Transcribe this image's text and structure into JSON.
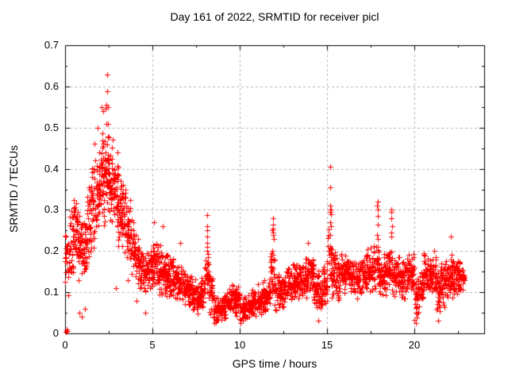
{
  "chart": {
    "title": "Day 161 of 2022, SRMTID for receiver picl",
    "xlabel": "GPS time / hours",
    "ylabel": "SRMTID / TECUs"
  },
  "chart_data": {
    "type": "scatter",
    "title": "Day 161 of 2022, SRMTID for receiver picl",
    "xlabel": "GPS time / hours",
    "ylabel": "SRMTID / TECUs",
    "series_name": "SRMTID",
    "marker": "plus",
    "marker_color": "#ff0000",
    "legend": "none",
    "xlim": [
      0,
      24
    ],
    "ylim": [
      0,
      0.7
    ],
    "xticks": {
      "values": [
        0,
        5,
        10,
        15,
        20
      ],
      "labels": [
        "0",
        "5",
        "10",
        "15",
        "20"
      ],
      "minor_step": 2.5
    },
    "yticks": {
      "values": [
        0,
        0.1,
        0.2,
        0.3,
        0.4,
        0.5,
        0.6,
        0.7
      ],
      "labels": [
        "0",
        "0.1",
        "0.2",
        "0.3",
        "0.4",
        "0.5",
        "0.6",
        "0.7"
      ],
      "minor_step": 0.05
    },
    "grid": {
      "major": true,
      "minor": false,
      "style": "dashed",
      "color": "#b3b3b3"
    },
    "frame_color": "#000000",
    "background": "#ffffff",
    "data_summary": {
      "description": "Dense scatter of ~2700 red '+' points, 30 s cadence, hours 0 to ~22.85. High noisy peak near hour 2.4 (max 0.63 TECU), decay to ~0.1-0.15 baseline, low dips ~0.02 near hours 8.6, 10, 20.1, and narrow spikes near hours 8.1, 11.9, 15.2 (0.40), 17.9, 18.7. Cluster of points at the origin.",
      "bin_width_hours": 0.25,
      "bins_format": [
        "x_start_hour",
        "y_low",
        "y_high",
        "n_points"
      ],
      "bins": [
        [
          0.0,
          0.09,
          0.25,
          25
        ],
        [
          0.25,
          0.13,
          0.33,
          30
        ],
        [
          0.5,
          0.15,
          0.37,
          32
        ],
        [
          0.75,
          0.1,
          0.3,
          30
        ],
        [
          1.0,
          0.12,
          0.3,
          30
        ],
        [
          1.25,
          0.15,
          0.37,
          32
        ],
        [
          1.5,
          0.2,
          0.44,
          38
        ],
        [
          1.75,
          0.22,
          0.46,
          38
        ],
        [
          2.0,
          0.25,
          0.52,
          40
        ],
        [
          2.25,
          0.26,
          0.56,
          40
        ],
        [
          2.5,
          0.25,
          0.5,
          38
        ],
        [
          2.75,
          0.22,
          0.45,
          36
        ],
        [
          3.0,
          0.2,
          0.42,
          36
        ],
        [
          3.25,
          0.18,
          0.38,
          34
        ],
        [
          3.5,
          0.15,
          0.34,
          32
        ],
        [
          3.75,
          0.14,
          0.28,
          32
        ],
        [
          4.0,
          0.12,
          0.25,
          30
        ],
        [
          4.25,
          0.1,
          0.22,
          30
        ],
        [
          4.5,
          0.09,
          0.2,
          30
        ],
        [
          4.75,
          0.1,
          0.22,
          30
        ],
        [
          5.0,
          0.1,
          0.24,
          32
        ],
        [
          5.25,
          0.09,
          0.22,
          32
        ],
        [
          5.5,
          0.08,
          0.21,
          32
        ],
        [
          5.75,
          0.08,
          0.2,
          32
        ],
        [
          6.0,
          0.08,
          0.19,
          30
        ],
        [
          6.25,
          0.08,
          0.18,
          30
        ],
        [
          6.5,
          0.07,
          0.17,
          30
        ],
        [
          6.75,
          0.07,
          0.16,
          30
        ],
        [
          7.0,
          0.05,
          0.15,
          30
        ],
        [
          7.25,
          0.05,
          0.14,
          30
        ],
        [
          7.5,
          0.04,
          0.13,
          30
        ],
        [
          7.75,
          0.05,
          0.14,
          30
        ],
        [
          8.0,
          0.08,
          0.2,
          26
        ],
        [
          8.25,
          0.04,
          0.15,
          30
        ],
        [
          8.5,
          0.02,
          0.09,
          30
        ],
        [
          8.75,
          0.02,
          0.09,
          30
        ],
        [
          9.0,
          0.03,
          0.11,
          30
        ],
        [
          9.25,
          0.04,
          0.12,
          30
        ],
        [
          9.5,
          0.04,
          0.13,
          30
        ],
        [
          9.75,
          0.03,
          0.12,
          30
        ],
        [
          10.0,
          0.02,
          0.1,
          30
        ],
        [
          10.25,
          0.03,
          0.1,
          30
        ],
        [
          10.5,
          0.03,
          0.11,
          30
        ],
        [
          10.75,
          0.04,
          0.11,
          30
        ],
        [
          11.0,
          0.04,
          0.12,
          30
        ],
        [
          11.25,
          0.05,
          0.13,
          30
        ],
        [
          11.5,
          0.05,
          0.14,
          30
        ],
        [
          11.75,
          0.08,
          0.22,
          26
        ],
        [
          12.0,
          0.05,
          0.16,
          30
        ],
        [
          12.25,
          0.06,
          0.15,
          30
        ],
        [
          12.5,
          0.07,
          0.16,
          30
        ],
        [
          12.75,
          0.07,
          0.17,
          30
        ],
        [
          13.0,
          0.08,
          0.17,
          30
        ],
        [
          13.25,
          0.08,
          0.18,
          30
        ],
        [
          13.5,
          0.08,
          0.18,
          30
        ],
        [
          13.75,
          0.08,
          0.2,
          30
        ],
        [
          14.0,
          0.08,
          0.2,
          30
        ],
        [
          14.25,
          0.05,
          0.17,
          30
        ],
        [
          14.5,
          0.04,
          0.16,
          30
        ],
        [
          14.75,
          0.06,
          0.19,
          30
        ],
        [
          15.0,
          0.1,
          0.26,
          26
        ],
        [
          15.25,
          0.08,
          0.22,
          30
        ],
        [
          15.5,
          0.08,
          0.19,
          30
        ],
        [
          15.75,
          0.09,
          0.2,
          30
        ],
        [
          16.0,
          0.1,
          0.2,
          30
        ],
        [
          16.25,
          0.09,
          0.19,
          30
        ],
        [
          16.5,
          0.08,
          0.18,
          30
        ],
        [
          16.75,
          0.08,
          0.19,
          30
        ],
        [
          17.0,
          0.09,
          0.2,
          30
        ],
        [
          17.25,
          0.09,
          0.21,
          30
        ],
        [
          17.5,
          0.1,
          0.22,
          30
        ],
        [
          17.75,
          0.1,
          0.24,
          26
        ],
        [
          18.0,
          0.08,
          0.2,
          30
        ],
        [
          18.25,
          0.09,
          0.2,
          30
        ],
        [
          18.5,
          0.1,
          0.22,
          27
        ],
        [
          18.75,
          0.08,
          0.19,
          30
        ],
        [
          19.0,
          0.08,
          0.19,
          30
        ],
        [
          19.25,
          0.08,
          0.19,
          30
        ],
        [
          19.5,
          0.1,
          0.21,
          30
        ],
        [
          19.75,
          0.08,
          0.2,
          30
        ],
        [
          20.0,
          0.03,
          0.14,
          30
        ],
        [
          20.25,
          0.06,
          0.16,
          30
        ],
        [
          20.5,
          0.08,
          0.2,
          30
        ],
        [
          20.75,
          0.09,
          0.21,
          30
        ],
        [
          21.0,
          0.08,
          0.21,
          30
        ],
        [
          21.25,
          0.04,
          0.16,
          30
        ],
        [
          21.5,
          0.06,
          0.18,
          30
        ],
        [
          21.75,
          0.07,
          0.19,
          30
        ],
        [
          22.0,
          0.08,
          0.2,
          30
        ],
        [
          22.25,
          0.09,
          0.2,
          30
        ],
        [
          22.5,
          0.1,
          0.18,
          30
        ],
        [
          22.75,
          0.1,
          0.17,
          12
        ]
      ],
      "notable_points": [
        [
          0.05,
          0.004
        ],
        [
          0.1,
          0.005
        ],
        [
          0.15,
          0.006
        ],
        [
          0.08,
          0.01
        ],
        [
          0.8,
          0.05
        ],
        [
          0.95,
          0.04
        ],
        [
          1.15,
          0.06
        ],
        [
          1.7,
          0.46
        ],
        [
          1.85,
          0.5
        ],
        [
          2.1,
          0.55
        ],
        [
          2.2,
          0.54
        ],
        [
          2.4,
          0.628
        ],
        [
          2.4,
          0.588
        ],
        [
          2.35,
          0.555
        ],
        [
          2.45,
          0.55
        ],
        [
          2.3,
          0.545
        ],
        [
          2.9,
          0.11
        ],
        [
          3.6,
          0.13
        ],
        [
          4.1,
          0.08
        ],
        [
          4.6,
          0.05
        ],
        [
          5.1,
          0.27
        ],
        [
          5.6,
          0.26
        ],
        [
          6.6,
          0.22
        ],
        [
          8.13,
          0.287
        ],
        [
          8.13,
          0.26
        ],
        [
          8.12,
          0.25
        ],
        [
          8.14,
          0.235
        ],
        [
          8.13,
          0.22
        ],
        [
          8.15,
          0.21
        ],
        [
          8.12,
          0.2
        ],
        [
          8.16,
          0.185
        ],
        [
          11.9,
          0.28
        ],
        [
          11.92,
          0.265
        ],
        [
          11.9,
          0.255
        ],
        [
          11.88,
          0.25
        ],
        [
          11.93,
          0.245
        ],
        [
          11.9,
          0.24
        ],
        [
          11.95,
          0.23
        ],
        [
          11.87,
          0.2
        ],
        [
          11.9,
          0.19
        ],
        [
          13.9,
          0.22
        ],
        [
          14.5,
          0.03
        ],
        [
          15.2,
          0.404
        ],
        [
          15.2,
          0.355
        ],
        [
          15.18,
          0.31
        ],
        [
          15.22,
          0.3
        ],
        [
          15.17,
          0.3
        ],
        [
          15.2,
          0.295
        ],
        [
          15.24,
          0.29
        ],
        [
          15.2,
          0.27
        ],
        [
          15.21,
          0.26
        ],
        [
          15.19,
          0.24
        ],
        [
          17.9,
          0.32
        ],
        [
          17.88,
          0.31
        ],
        [
          17.9,
          0.3
        ],
        [
          17.92,
          0.285
        ],
        [
          17.9,
          0.265
        ],
        [
          17.88,
          0.24
        ],
        [
          17.93,
          0.23
        ],
        [
          18.7,
          0.3
        ],
        [
          18.68,
          0.295
        ],
        [
          18.7,
          0.28
        ],
        [
          18.72,
          0.26
        ],
        [
          18.7,
          0.245
        ],
        [
          18.69,
          0.235
        ],
        [
          20.1,
          0.025
        ],
        [
          21.35,
          0.03
        ],
        [
          22.1,
          0.236
        ]
      ]
    }
  }
}
